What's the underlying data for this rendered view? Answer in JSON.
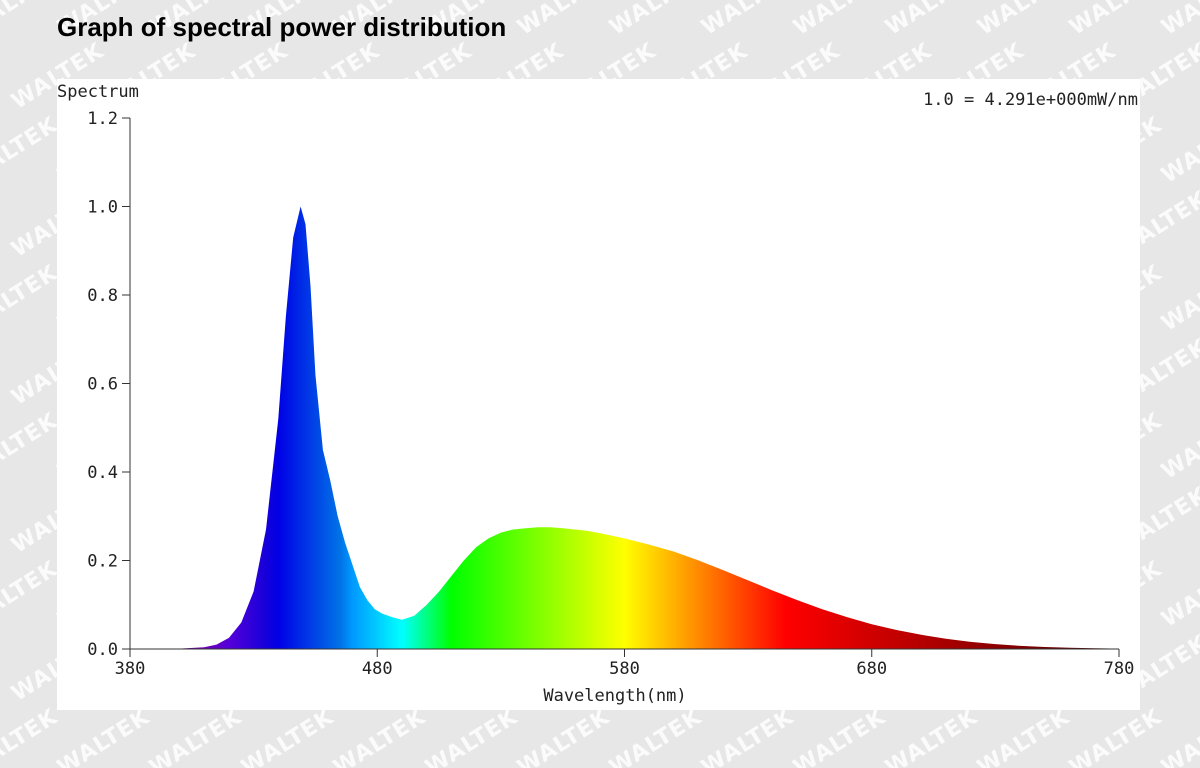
{
  "page": {
    "title": "Graph of spectral power distribution",
    "watermark_text": "WALTEK"
  },
  "chart_data": {
    "type": "area",
    "ylabel": "Spectrum",
    "xlabel": "Wavelength(nm)",
    "annotation": "1.0 = 4.291e+000mW/nm",
    "xlim": [
      380,
      780
    ],
    "ylim": [
      0,
      1.2
    ],
    "x_ticks": [
      380,
      480,
      580,
      680,
      780
    ],
    "x_tick_labels": [
      "380",
      "480",
      "580",
      "680",
      "780"
    ],
    "y_ticks": [
      0,
      0.2,
      0.4,
      0.6,
      0.8,
      1.0,
      1.2
    ],
    "y_tick_labels": [
      "0.0",
      "0.2",
      "0.4",
      "0.6",
      "0.8",
      "1.0",
      "1.2"
    ],
    "fill": "wavelength-colored spectrum",
    "series": [
      {
        "x": [
          380,
          400,
          410,
          415,
          420,
          425,
          430,
          435,
          440,
          443,
          446,
          449,
          451,
          453,
          455,
          458,
          461,
          464,
          467,
          470,
          473,
          476,
          479,
          482,
          486,
          490,
          495,
          500,
          505,
          510,
          515,
          520,
          525,
          530,
          535,
          540,
          545,
          550,
          555,
          560,
          565,
          570,
          575,
          580,
          585,
          590,
          595,
          600,
          610,
          620,
          630,
          640,
          650,
          660,
          670,
          680,
          690,
          700,
          710,
          720,
          730,
          740,
          750,
          760,
          770,
          780
        ],
        "y": [
          0,
          0.001,
          0.004,
          0.01,
          0.025,
          0.06,
          0.13,
          0.27,
          0.52,
          0.75,
          0.93,
          1.0,
          0.96,
          0.82,
          0.62,
          0.45,
          0.38,
          0.3,
          0.24,
          0.19,
          0.14,
          0.11,
          0.09,
          0.08,
          0.072,
          0.066,
          0.075,
          0.1,
          0.13,
          0.165,
          0.2,
          0.23,
          0.25,
          0.263,
          0.27,
          0.273,
          0.275,
          0.275,
          0.273,
          0.27,
          0.267,
          0.262,
          0.256,
          0.25,
          0.243,
          0.236,
          0.228,
          0.22,
          0.2,
          0.178,
          0.155,
          0.132,
          0.11,
          0.09,
          0.072,
          0.056,
          0.043,
          0.032,
          0.023,
          0.016,
          0.011,
          0.007,
          0.0045,
          0.0028,
          0.0015,
          0.0008
        ]
      }
    ]
  }
}
